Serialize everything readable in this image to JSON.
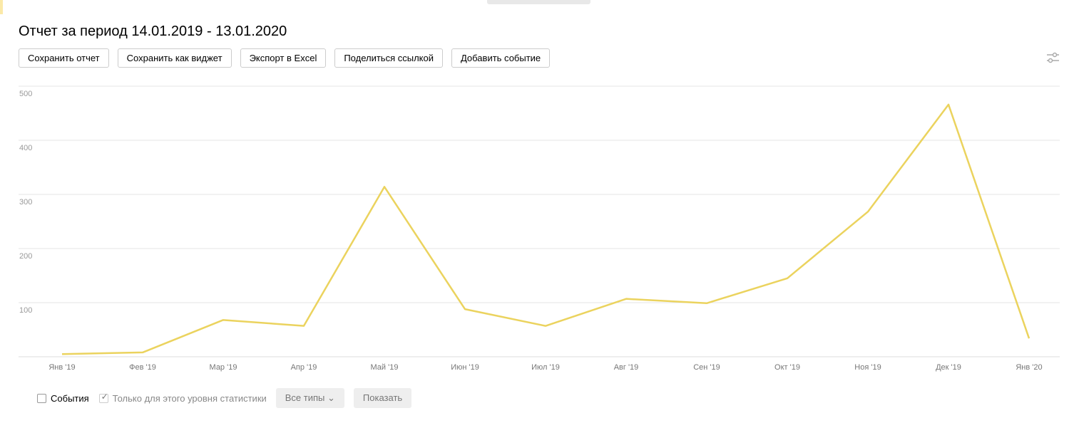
{
  "header": {
    "title": "Отчет за период 14.01.2019 - 13.01.2020"
  },
  "buttons": [
    "Сохранить отчет",
    "Сохранить как виджет",
    "Экспорт в Excel",
    "Поделиться ссылкой",
    "Добавить событие"
  ],
  "chart_data": {
    "type": "line",
    "categories": [
      "Янв '19",
      "Фев '19",
      "Мар '19",
      "Апр '19",
      "Май '19",
      "Июн '19",
      "Июл '19",
      "Авг '19",
      "Сен '19",
      "Окт '19",
      "Ноя '19",
      "Дек '19",
      "Янв '20"
    ],
    "values": [
      5,
      8,
      68,
      57,
      314,
      88,
      57,
      107,
      99,
      145,
      268,
      466,
      34
    ],
    "color": "#ebd35e",
    "ylim": [
      0,
      500
    ],
    "yticks": [
      100,
      200,
      300,
      400,
      500
    ],
    "grid": true
  },
  "footer": {
    "events": "События",
    "only_level": "Только для этого уровня статистики",
    "types": "Все типы",
    "show": "Показать"
  }
}
